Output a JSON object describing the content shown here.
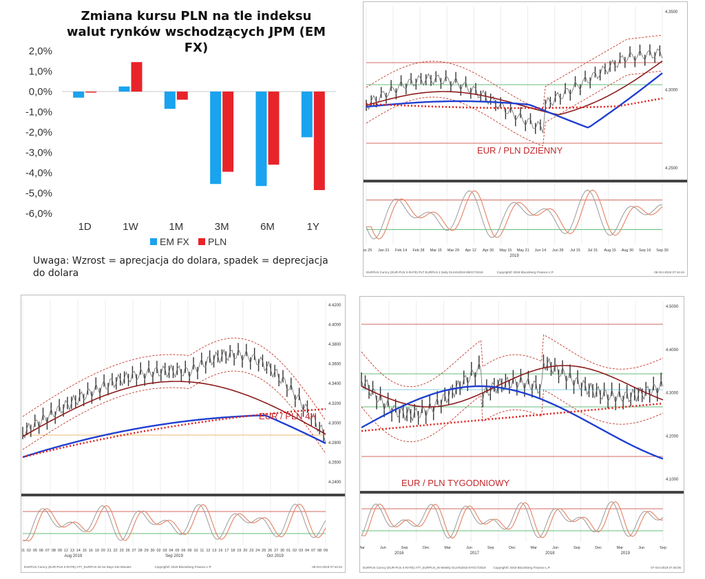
{
  "chart_data": [
    {
      "type": "bar",
      "title": "Zmiana kursu PLN na tle indeksu walut rynków wschodzących JPM (EM FX)",
      "categories": [
        "1D",
        "1W",
        "1M",
        "3M",
        "6M",
        "1Y"
      ],
      "series": [
        {
          "name": "EM FX",
          "color": "#1aa3ee",
          "values": [
            -0.3,
            0.25,
            -0.85,
            -4.55,
            -4.65,
            -2.25
          ]
        },
        {
          "name": "PLN",
          "color": "#e8242a",
          "values": [
            -0.05,
            1.45,
            -0.4,
            -3.95,
            -3.6,
            -4.85
          ]
        }
      ],
      "ylim": [
        -6,
        2
      ],
      "yticks": [
        "2,0%",
        "1,0%",
        "0,0%",
        "-1,0%",
        "-2,0%",
        "-3,0%",
        "-4,0%",
        "-5,0%",
        "-6,0%"
      ],
      "legend": "bottom",
      "note": "Uwaga: Wzrost = aprecjacja do dolara, spadek = deprecjacja do dolara"
    },
    {
      "type": "line",
      "title": "EUR / PLN DZIENNY",
      "x_ticks": [
        "Jan 25",
        "Jan 31",
        "Feb 14",
        "Feb 28",
        "Mar 15",
        "Mar 29",
        "Apr 12",
        "Apr 30",
        "May 15",
        "May 31",
        "Jun 14",
        "Jun 28",
        "Jul 15",
        "Jul 31",
        "Aug 15",
        "Aug 30",
        "Sep 16",
        "Sep 30"
      ],
      "year": "2019",
      "y_ticks": [
        "4.3500",
        "4.3000",
        "4.2500"
      ]
    },
    {
      "type": "line",
      "title": "EUR / PLN 4H",
      "x_ticks": [
        "01",
        "02",
        "05",
        "06",
        "07",
        "08",
        "09",
        "12",
        "13",
        "14",
        "15",
        "16",
        "19",
        "20",
        "21",
        "22",
        "23",
        "26",
        "27",
        "28",
        "29",
        "30",
        "02",
        "03",
        "04",
        "05",
        "06",
        "09",
        "10",
        "11",
        "12",
        "13",
        "16",
        "17",
        "18",
        "19",
        "20",
        "23",
        "24",
        "25",
        "26",
        "27",
        "30",
        "01",
        "02",
        "03",
        "04",
        "07",
        "08",
        "09"
      ],
      "months": [
        "Aug 2019",
        "Sep 2019",
        "Oct 2019"
      ],
      "y_ticks": [
        "4.4200",
        "4.4000",
        "4.3800",
        "4.3600",
        "4.3400",
        "4.3200",
        "4.3000",
        "4.2800",
        "4.2600",
        "4.2400"
      ]
    },
    {
      "type": "line",
      "title": "EUR / PLN TYGODNIOWY",
      "x_ticks": [
        "Mar",
        "Jun",
        "Sep",
        "Dec",
        "Mar",
        "Jun",
        "Sep",
        "Dec",
        "Mar",
        "Jun",
        "Sep",
        "Dec",
        "Mar",
        "Jun",
        "Sep"
      ],
      "years": [
        "2016",
        "2017",
        "2018",
        "2019"
      ],
      "y_ticks": [
        "4.5000",
        "4.4000",
        "4.3000",
        "4.2000",
        "4.1000"
      ]
    }
  ],
  "labels": {
    "daily": "EUR / PLN DZIENNY",
    "h4": "EUR / PLN 4H",
    "weekly": "EUR / PLN TYGODNIOWY",
    "year2019": "2019",
    "daily_footer": "EURPLN Curncy (EUR-PLN X-RATE) PLT EURPLN 1 Daily 01JAN2019-08OCT2019",
    "daily_copyright": "Copyright© 2019 Bloomberg Finance L.P.",
    "daily_stamp": "08-Oct-2019 07:44:44",
    "h4_footer": "EURPLN Curncy (EUR-PLN X-RATE) ATT_EURPLN 4H 64 Days 240 Minutes",
    "h4_copyright": "Copyright© 2019 Bloomberg Finance L.P.",
    "h4_stamp": "09-Oct-2019 07:44:22",
    "weekly_footer": "EURPLN Curncy (EUR-PLN X-RATE) ATT_EURPLN_W Weekly 01JAN2016-07OCT2019",
    "weekly_copyright": "Copyright© 2019 Bloomberg Finance L.P.",
    "weekly_stamp": "07-Oct-2019 07:45:05"
  }
}
